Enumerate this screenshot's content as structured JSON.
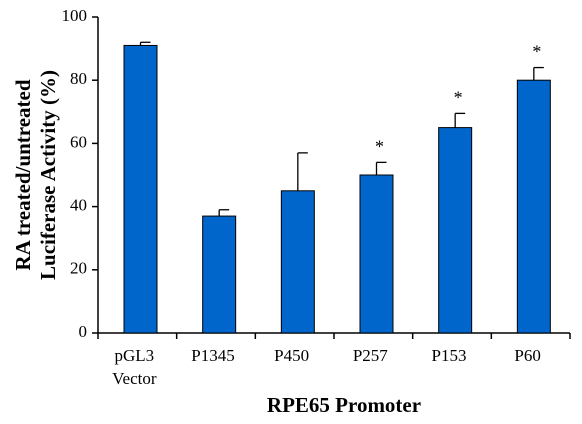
{
  "chart_data": {
    "type": "bar",
    "title": "",
    "categories": [
      [
        "pGL3",
        "Vector"
      ],
      [
        "P1345"
      ],
      [
        "P450"
      ],
      [
        "P257"
      ],
      [
        "P153"
      ],
      [
        "P60"
      ]
    ],
    "values": [
      91,
      37,
      45,
      50,
      65,
      80
    ],
    "errors": [
      1,
      2,
      12,
      4,
      4.5,
      4
    ],
    "significance": [
      "",
      "",
      "",
      "*",
      "*",
      "*"
    ],
    "xlabel": "RPE65 Promoter",
    "ylabel": [
      "RA treated/untreated",
      "Luciferase Activity (%)"
    ],
    "ylim": [
      0,
      100
    ],
    "yticks": [
      0,
      20,
      40,
      60,
      80,
      100
    ],
    "grid": false,
    "legend": "none",
    "colors": {
      "bar_fill": "#0066cc",
      "bar_stroke": "#000000",
      "axis": "#000000",
      "error_bar": "#000000"
    }
  }
}
